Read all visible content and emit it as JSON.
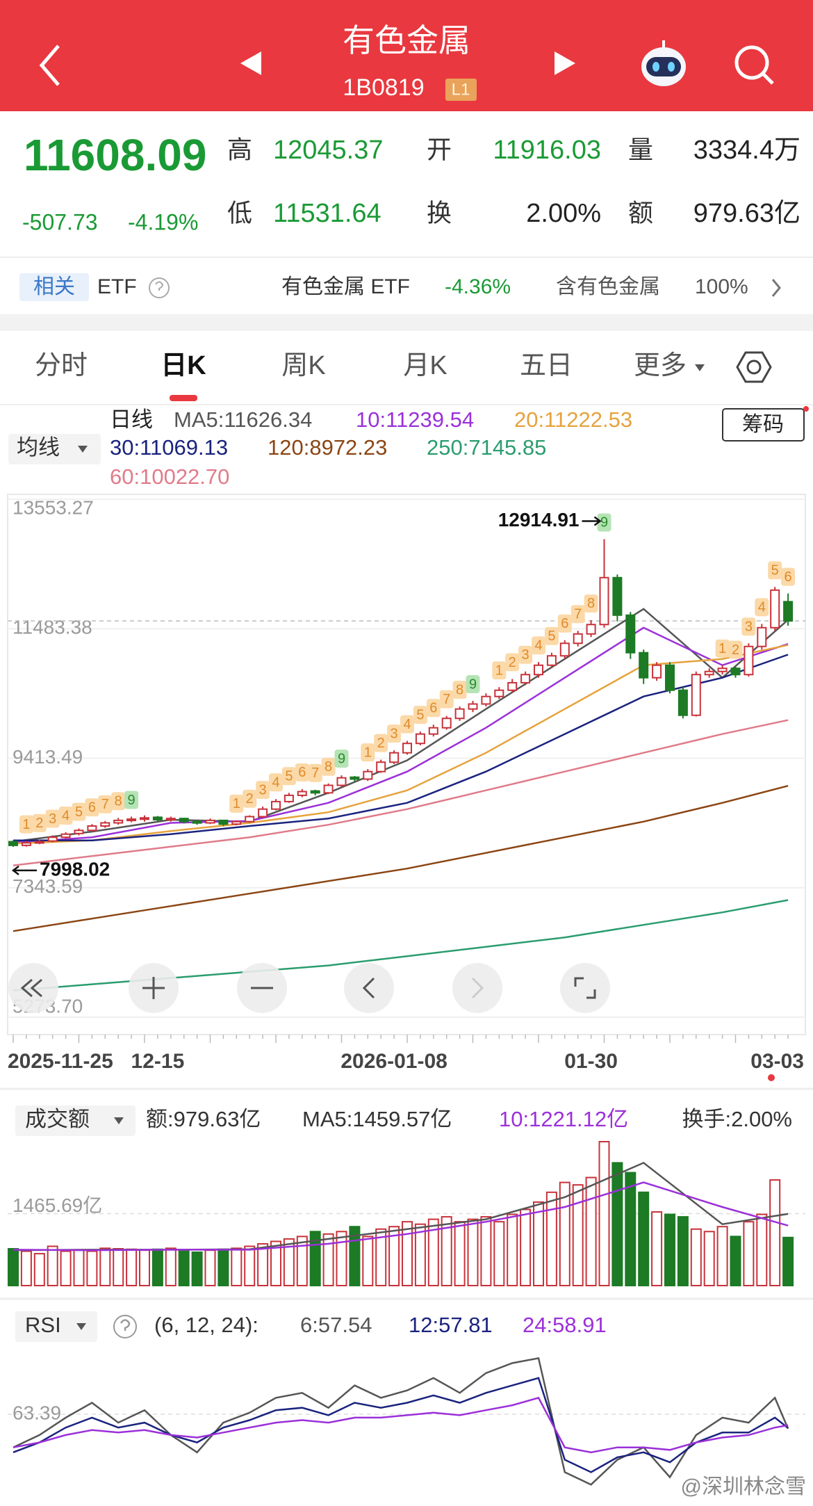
{
  "header": {
    "title": "有色金属",
    "code": "1B0819",
    "level": "L1"
  },
  "quote": {
    "price": "11608.09",
    "change": "-507.73",
    "change_pct": "-4.19%",
    "stats": [
      {
        "label": "高",
        "value": "12045.37",
        "color": "#1a9a35"
      },
      {
        "label": "开",
        "value": "11916.03",
        "color": "#1a9a35"
      },
      {
        "label": "量",
        "value": "3334.4万",
        "color": "#222222"
      },
      {
        "label": "低",
        "value": "11531.64",
        "color": "#1a9a35"
      },
      {
        "label": "换",
        "value": "2.00%",
        "color": "#222222"
      },
      {
        "label": "额",
        "value": "979.63亿",
        "color": "#222222"
      }
    ]
  },
  "etf": {
    "tag": "相关",
    "name": "ETF",
    "fund": "有色金属 ETF",
    "fund_change": "-4.36%",
    "holding": "含有色金属",
    "holding_pct": "100%"
  },
  "tabs": {
    "items": [
      "分时",
      "日K",
      "周K",
      "月K",
      "五日",
      "更多"
    ],
    "selected": 1
  },
  "kline": {
    "period": "日线",
    "ma_button": "均线",
    "chip_button": "筹码",
    "ylim": [
      5273.7,
      13553.27
    ],
    "yticks": [
      13553.27,
      11483.38,
      9413.49,
      7343.59,
      {
        "value": 5273.7,
        "label": "5273.70"
      }
    ],
    "candles": [
      [
        8080,
        8100,
        7998.02,
        8020
      ],
      [
        8020,
        8090,
        8000,
        8060
      ],
      [
        8060,
        8110,
        8040,
        8080
      ],
      [
        8090,
        8180,
        8070,
        8150
      ],
      [
        8150,
        8230,
        8120,
        8200
      ],
      [
        8210,
        8290,
        8180,
        8260
      ],
      [
        8260,
        8360,
        8240,
        8330
      ],
      [
        8330,
        8410,
        8300,
        8380
      ],
      [
        8380,
        8460,
        8350,
        8420
      ],
      [
        8420,
        8480,
        8390,
        8440
      ],
      [
        8440,
        8500,
        8400,
        8460
      ],
      [
        8470,
        8490,
        8400,
        8430
      ],
      [
        8430,
        8480,
        8400,
        8450
      ],
      [
        8450,
        8460,
        8370,
        8400
      ],
      [
        8400,
        8420,
        8350,
        8380
      ],
      [
        8380,
        8450,
        8360,
        8420
      ],
      [
        8420,
        8430,
        8330,
        8360
      ],
      [
        8360,
        8420,
        8340,
        8400
      ],
      [
        8400,
        8500,
        8380,
        8480
      ],
      [
        8480,
        8640,
        8460,
        8600
      ],
      [
        8600,
        8760,
        8580,
        8720
      ],
      [
        8720,
        8860,
        8700,
        8820
      ],
      [
        8820,
        8920,
        8790,
        8880
      ],
      [
        8890,
        8910,
        8820,
        8860
      ],
      [
        8860,
        9010,
        8840,
        8980
      ],
      [
        8980,
        9140,
        8950,
        9100
      ],
      [
        9110,
        9130,
        9030,
        9080
      ],
      [
        9080,
        9240,
        9050,
        9200
      ],
      [
        9200,
        9390,
        9180,
        9350
      ],
      [
        9350,
        9540,
        9320,
        9500
      ],
      [
        9500,
        9690,
        9470,
        9650
      ],
      [
        9650,
        9840,
        9620,
        9800
      ],
      [
        9800,
        9950,
        9760,
        9900
      ],
      [
        9900,
        10090,
        9870,
        10050
      ],
      [
        10050,
        10240,
        10010,
        10200
      ],
      [
        10200,
        10330,
        10150,
        10280
      ],
      [
        10280,
        10450,
        10240,
        10400
      ],
      [
        10400,
        10550,
        10360,
        10500
      ],
      [
        10500,
        10680,
        10460,
        10620
      ],
      [
        10620,
        10800,
        10580,
        10750
      ],
      [
        10750,
        10950,
        10700,
        10900
      ],
      [
        10900,
        11100,
        10850,
        11050
      ],
      [
        11050,
        11300,
        11000,
        11250
      ],
      [
        11250,
        11450,
        11200,
        11400
      ],
      [
        11400,
        11620,
        11350,
        11550
      ],
      [
        11550,
        12914.91,
        11500,
        12300
      ],
      [
        12300,
        12350,
        11600,
        11700
      ],
      [
        11700,
        11750,
        11000,
        11100
      ],
      [
        11100,
        11150,
        10600,
        10700
      ],
      [
        10700,
        10950,
        10650,
        10900
      ],
      [
        10900,
        10950,
        10450,
        10500
      ],
      [
        10500,
        10550,
        10050,
        10100
      ],
      [
        10100,
        10800,
        10080,
        10750
      ],
      [
        10750,
        10850,
        10700,
        10800
      ],
      [
        10800,
        10900,
        10750,
        10850
      ],
      [
        10850,
        10880,
        10700,
        10750
      ],
      [
        10750,
        11250,
        10720,
        11200
      ],
      [
        11200,
        11560,
        11150,
        11500
      ],
      [
        11500,
        12150,
        11450,
        12100
      ],
      [
        11916.03,
        12045.37,
        11531.64,
        11608.09
      ]
    ],
    "ma_index": [
      0,
      6,
      12,
      18,
      24,
      30,
      36,
      42,
      48,
      54,
      59
    ],
    "ma": [
      {
        "legend": "MA5:11626.34",
        "color": "#555555",
        "values": [
          8080,
          8240,
          8430,
          8400,
          8860,
          9380,
          10200,
          11000,
          11800,
          10700,
          11626.34
        ]
      },
      {
        "legend": "10:11239.54",
        "color": "#9b30d9",
        "values": [
          8060,
          8150,
          8380,
          8410,
          8700,
          9200,
          9900,
          10700,
          11500,
          10900,
          11239.54
        ]
      },
      {
        "legend": "20:11222.53",
        "color": "#e6a23c",
        "values": [
          8050,
          8100,
          8250,
          8380,
          8550,
          8900,
          9500,
          10200,
          10900,
          11000,
          11222.53
        ]
      },
      {
        "legend": "30:11069.13",
        "color": "#1a237e",
        "values": [
          8100,
          8100,
          8200,
          8330,
          8450,
          8700,
          9200,
          9800,
          10400,
          10700,
          11069.13
        ]
      },
      {
        "legend": "120:8972.23",
        "color": "#8b4513",
        "values": [
          6650,
          6850,
          7050,
          7250,
          7450,
          7650,
          7900,
          8150,
          8400,
          8700,
          8972.23
        ]
      },
      {
        "legend": "250:7145.85",
        "color": "#2a9d6e",
        "values": [
          5700,
          5800,
          5900,
          6000,
          6100,
          6250,
          6400,
          6550,
          6750,
          6950,
          7145.85
        ]
      },
      {
        "legend": "60:10022.70",
        "color": "#e07b8a",
        "values": [
          7700,
          7850,
          8000,
          8150,
          8350,
          8600,
          8900,
          9200,
          9500,
          9800,
          10022.7
        ]
      }
    ],
    "td_sequences": [
      {
        "start": 1,
        "labels": [
          1,
          2,
          3,
          4,
          5,
          6,
          7,
          8,
          9
        ]
      },
      {
        "start": 17,
        "labels": [
          1,
          2,
          3,
          4,
          5,
          6,
          7,
          8,
          9
        ]
      },
      {
        "start": 27,
        "labels": [
          1,
          2,
          3,
          4,
          5,
          6,
          7,
          8,
          9
        ]
      },
      {
        "start": 37,
        "labels": [
          1,
          2,
          3,
          4,
          5,
          6,
          7,
          8,
          9
        ]
      },
      {
        "start": 54,
        "labels": [
          1,
          2,
          3,
          4,
          5,
          6
        ]
      }
    ],
    "dates": [
      "2025-11-25",
      "12-15",
      "2026-01-08",
      "01-30",
      "03-03"
    ],
    "date_index": [
      0,
      11,
      29,
      44,
      59
    ]
  },
  "volume": {
    "title": "成交额",
    "items": [
      {
        "text": "额:979.63亿",
        "color": "#333333"
      },
      {
        "text": "MA5:1459.57亿",
        "color": "#333333"
      },
      {
        "text": "10:1221.12亿",
        "color": "#9b30d9"
      },
      {
        "text": "换手:2.00%",
        "color": "#333333"
      }
    ],
    "ylim": [
      0,
      2930
    ],
    "yticks": [
      {
        "value": 1465.69,
        "label": "1465.69亿"
      }
    ],
    "values": [
      750,
      700,
      650,
      800,
      700,
      720,
      700,
      760,
      750,
      740,
      720,
      740,
      760,
      700,
      680,
      720,
      740,
      760,
      800,
      850,
      900,
      950,
      1000,
      1100,
      1050,
      1100,
      1200,
      1000,
      1150,
      1200,
      1300,
      1250,
      1350,
      1400,
      1300,
      1350,
      1400,
      1300,
      1450,
      1550,
      1700,
      1900,
      2100,
      2050,
      2200,
      2930,
      2500,
      2300,
      1900,
      1500,
      1450,
      1400,
      1150,
      1100,
      1200,
      1000,
      1300,
      1450,
      2150,
      979.63
    ],
    "ma": [
      {
        "color": "#555555",
        "values": [
          720,
          730,
          730,
          740,
          950,
          1150,
          1350,
          1800,
          2500,
          1250,
          1459.57
        ]
      },
      {
        "color": "#9b30d9",
        "values": [
          730,
          720,
          730,
          730,
          850,
          1050,
          1300,
          1600,
          2100,
          1600,
          1221.12
        ]
      }
    ]
  },
  "rsi": {
    "title": "RSI",
    "params": "(6, 12, 24):",
    "index": [
      0,
      2,
      4,
      6,
      8,
      10,
      12,
      14,
      16,
      18,
      20,
      22,
      24,
      26,
      28,
      30,
      32,
      34,
      36,
      38,
      40,
      42,
      44,
      46,
      48,
      50,
      52,
      54,
      56,
      58,
      59
    ],
    "ylim": [
      30,
      92
    ],
    "yticks": [
      63.39
    ],
    "series": [
      {
        "legend": "6:57.54",
        "color": "#555555",
        "values": [
          50,
          55,
          62,
          68,
          60,
          65,
          55,
          48,
          60,
          64,
          70,
          72,
          66,
          75,
          70,
          73,
          78,
          72,
          80,
          84,
          86,
          40,
          35,
          45,
          50,
          38,
          55,
          62,
          60,
          70,
          57.54
        ]
      },
      {
        "legend": "12:57.81",
        "color": "#1a237e",
        "values": [
          48,
          52,
          58,
          62,
          58,
          60,
          55,
          52,
          58,
          61,
          65,
          66,
          63,
          68,
          66,
          68,
          71,
          68,
          72,
          75,
          78,
          45,
          40,
          46,
          48,
          44,
          52,
          56,
          56,
          62,
          57.81
        ]
      },
      {
        "legend": "24:58.91",
        "color": "#9b30d9",
        "values": [
          50,
          52,
          55,
          57,
          56,
          57,
          55,
          54,
          56,
          58,
          60,
          61,
          60,
          62,
          62,
          63,
          64,
          63,
          65,
          67,
          70,
          50,
          48,
          50,
          50,
          49,
          52,
          54,
          55,
          58,
          58.91
        ]
      }
    ]
  },
  "watermark": "@深圳林念雪"
}
